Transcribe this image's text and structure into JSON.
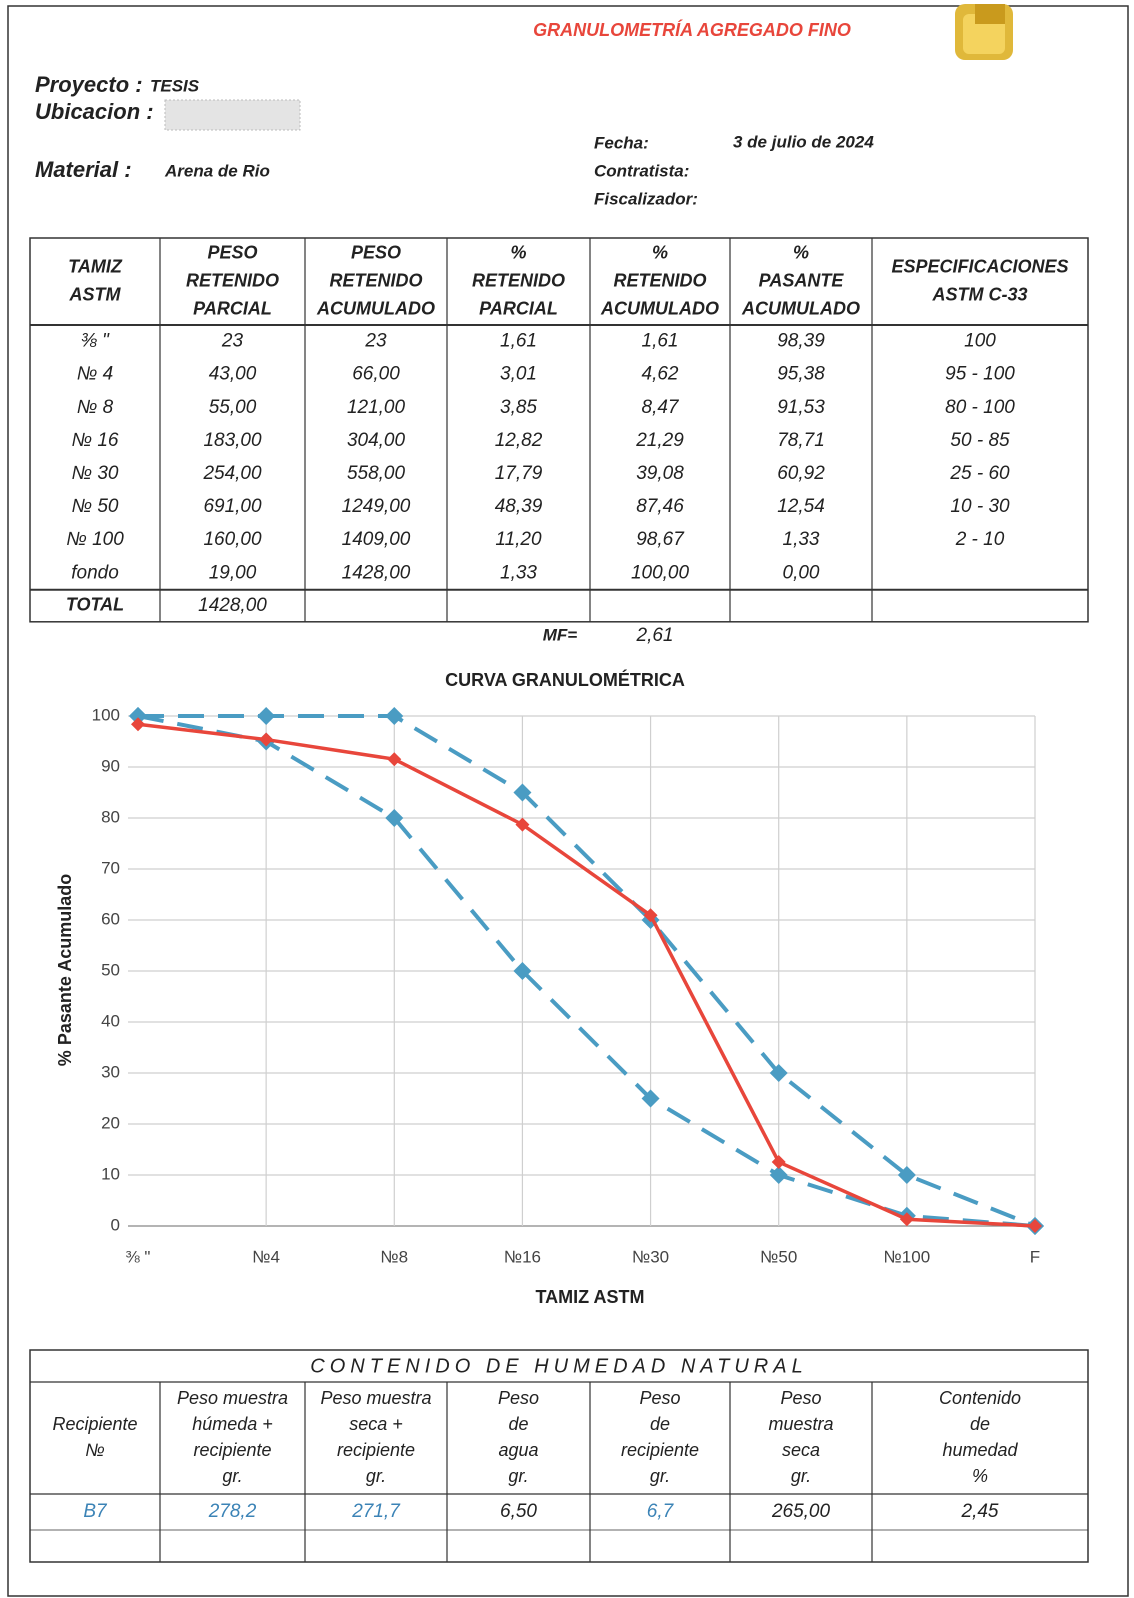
{
  "header": {
    "title": "GRANULOMETRÍA AGREGADO FINO",
    "project_label": "Proyecto :",
    "project": "TESIS",
    "location_label": "Ubicacion :",
    "material_label": "Material :",
    "material": "Arena de Rio",
    "date_label": "Fecha:",
    "date": "3 de julio de 2024",
    "contractor_label": "Contratista:",
    "supervisor_label": "Fiscalizador:"
  },
  "table": {
    "headers": [
      [
        "TAMIZ",
        "ASTM"
      ],
      [
        "PESO",
        "RETENIDO",
        "PARCIAL"
      ],
      [
        "PESO",
        "RETENIDO",
        "ACUMULADO"
      ],
      [
        "%",
        "RETENIDO",
        "PARCIAL"
      ],
      [
        "%",
        "RETENIDO",
        "ACUMULADO"
      ],
      [
        "%",
        "PASANTE",
        "ACUMULADO"
      ],
      [
        "ESPECIFICACIONES",
        "ASTM C-33"
      ]
    ],
    "rows": [
      [
        "⅜ \"",
        "23",
        "23",
        "1,61",
        "1,61",
        "98,39",
        "100"
      ],
      [
        "№ 4",
        "43,00",
        "66,00",
        "3,01",
        "4,62",
        "95,38",
        "95 - 100"
      ],
      [
        "№ 8",
        "55,00",
        "121,00",
        "3,85",
        "8,47",
        "91,53",
        "80 - 100"
      ],
      [
        "№ 16",
        "183,00",
        "304,00",
        "12,82",
        "21,29",
        "78,71",
        "50 - 85"
      ],
      [
        "№ 30",
        "254,00",
        "558,00",
        "17,79",
        "39,08",
        "60,92",
        "25 - 60"
      ],
      [
        "№ 50",
        "691,00",
        "1249,00",
        "48,39",
        "87,46",
        "12,54",
        "10 - 30"
      ],
      [
        "№ 100",
        "160,00",
        "1409,00",
        "11,20",
        "98,67",
        "1,33",
        "2 - 10"
      ],
      [
        "fondo",
        "19,00",
        "1428,00",
        "1,33",
        "100,00",
        "0,00"
      ]
    ],
    "total": [
      "TOTAL",
      "1428,00"
    ],
    "mf_label": "MF=",
    "mf": "2,61"
  },
  "chart_data": {
    "type": "line",
    "title": "CURVA GRANULOMÉTRICA",
    "x_label": "TAMIZ ASTM",
    "y_label": "% Pasante Acumulado",
    "categories": [
      "⅜ \"",
      "№4",
      "№8",
      "№16",
      "№30",
      "№50",
      "№100",
      "F"
    ],
    "series": [
      {
        "color": "#4a9cc3",
        "dashed": true,
        "values": [
          100,
          100,
          100,
          85,
          60,
          30,
          10,
          0
        ]
      },
      {
        "color": "#4a9cc3",
        "dashed": true,
        "values": [
          100,
          95,
          80,
          50,
          25,
          10,
          2,
          0
        ]
      },
      {
        "color": "#e8463b",
        "dashed": false,
        "values": [
          98.39,
          95.38,
          91.53,
          78.71,
          60.92,
          12.54,
          1.33,
          0
        ]
      }
    ],
    "ylim": [
      0,
      100
    ],
    "yticks": [
      0,
      10,
      20,
      30,
      40,
      50,
      60,
      70,
      80,
      90,
      100
    ],
    "grid": true
  },
  "moisture": {
    "title": "CONTENIDO DE HUMEDAD NATURAL",
    "headers": [
      [
        "Recipiente",
        "№"
      ],
      [
        "Peso muestra",
        "húmeda +",
        "recipiente",
        "gr."
      ],
      [
        "Peso muestra",
        "seca +",
        "recipiente",
        "gr."
      ],
      [
        "Peso",
        "de",
        "agua",
        "gr."
      ],
      [
        "Peso",
        "de",
        "recipiente",
        "gr."
      ],
      [
        "Peso",
        "muestra",
        "seca",
        "gr."
      ],
      [
        "Contenido",
        "de",
        "humedad",
        "%"
      ]
    ],
    "rows": [
      [
        "B7",
        "278,2",
        "271,7",
        "6,50",
        "6,7",
        "265,00",
        "2,45"
      ]
    ]
  }
}
